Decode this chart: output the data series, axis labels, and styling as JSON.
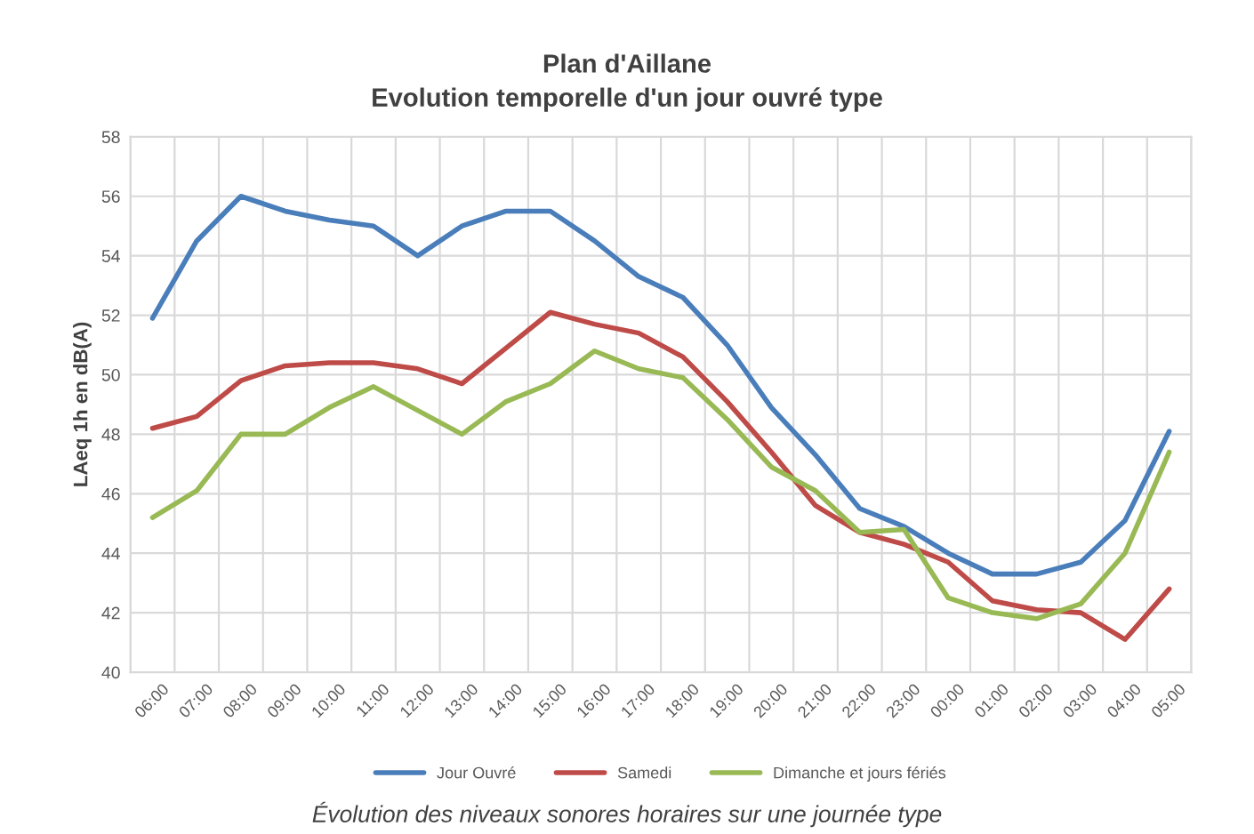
{
  "chart_data": {
    "type": "line",
    "title": "Plan d'Aillane",
    "subtitle": "Evolution temporelle d'un jour ouvré type",
    "ylabel": "LAeq 1h en dB(A)",
    "categories": [
      "06:00",
      "07:00",
      "08:00",
      "09:00",
      "10:00",
      "11:00",
      "12:00",
      "13:00",
      "14:00",
      "15:00",
      "16:00",
      "17:00",
      "18:00",
      "19:00",
      "20:00",
      "21:00",
      "22:00",
      "23:00",
      "00:00",
      "01:00",
      "02:00",
      "03:00",
      "04:00",
      "05:00"
    ],
    "series": [
      {
        "name": "Jour Ouvré",
        "color": "#4a7ebb",
        "values": [
          51.9,
          54.5,
          56.0,
          55.5,
          55.2,
          55.0,
          54.0,
          55.0,
          55.5,
          55.5,
          54.5,
          53.3,
          52.6,
          51.0,
          48.9,
          47.3,
          45.5,
          44.9,
          44.0,
          43.3,
          43.3,
          43.7,
          45.1,
          48.1
        ]
      },
      {
        "name": "Samedi",
        "color": "#be4b48",
        "values": [
          48.2,
          48.6,
          49.8,
          50.3,
          50.4,
          50.4,
          50.2,
          49.7,
          50.9,
          52.1,
          51.7,
          51.4,
          50.6,
          49.1,
          47.4,
          45.6,
          44.7,
          44.3,
          43.7,
          42.4,
          42.1,
          42.0,
          41.1,
          42.8
        ]
      },
      {
        "name": "Dimanche et jours fériés",
        "color": "#98b954",
        "values": [
          45.2,
          46.1,
          48.0,
          48.0,
          48.9,
          49.6,
          48.8,
          48.0,
          49.1,
          49.7,
          50.8,
          50.2,
          49.9,
          48.5,
          46.9,
          46.1,
          44.7,
          44.8,
          42.5,
          42.0,
          41.8,
          42.3,
          44.0,
          47.4
        ]
      }
    ],
    "ylim": [
      40,
      58
    ],
    "yticks": [
      40,
      42,
      44,
      46,
      48,
      50,
      52,
      54,
      56,
      58
    ],
    "grid": true,
    "legend": "bottom",
    "annotations": [
      "Évolution des niveaux sonores horaires sur une journée type"
    ]
  }
}
